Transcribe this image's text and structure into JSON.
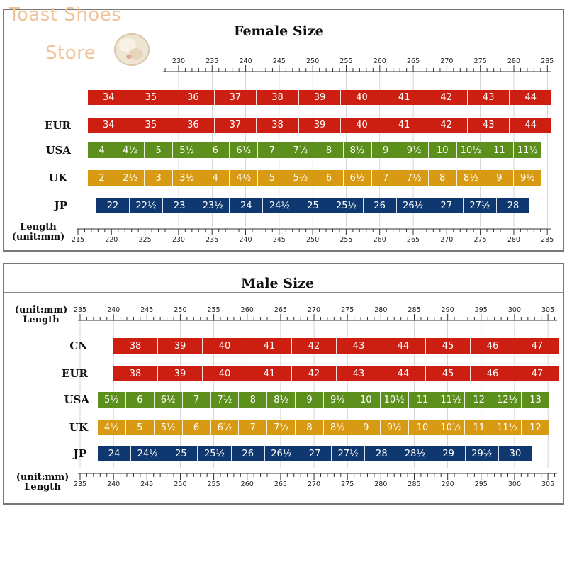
{
  "watermark": {
    "line1": "Toast Shoes",
    "line2": "Store",
    "logo_icon": "toast-bread-icon"
  },
  "colors": {
    "red": "#cc1f12",
    "green": "#5c8f1c",
    "orange": "#d89a12",
    "navy": "#0f3870"
  },
  "female": {
    "title": "Female Size",
    "length_label": "Length",
    "unit_label": "(unit:mm)",
    "top_ruler_ticks": [
      "230",
      "235",
      "240",
      "245",
      "250",
      "255",
      "260",
      "265",
      "270",
      "275",
      "280",
      "285"
    ],
    "bottom_ruler_ticks": [
      "215",
      "220",
      "225",
      "230",
      "235",
      "240",
      "245",
      "250",
      "255",
      "260",
      "265",
      "270",
      "275",
      "280",
      "285"
    ],
    "rows": [
      {
        "label": "",
        "cells": [
          "34",
          "35",
          "36",
          "37",
          "38",
          "39",
          "40",
          "41",
          "42",
          "43",
          "44"
        ]
      },
      {
        "label": "EUR",
        "cells": [
          "34",
          "35",
          "36",
          "37",
          "38",
          "39",
          "40",
          "41",
          "42",
          "43",
          "44"
        ]
      },
      {
        "label": "USA",
        "cells": [
          "4",
          "4½",
          "5",
          "5½",
          "6",
          "6½",
          "7",
          "7½",
          "8",
          "8½",
          "9",
          "9½",
          "10",
          "10½",
          "11",
          "11½"
        ]
      },
      {
        "label": "UK",
        "cells": [
          "2",
          "2½",
          "3",
          "3½",
          "4",
          "4½",
          "5",
          "5½",
          "6",
          "6½",
          "7",
          "7½",
          "8",
          "8½",
          "9",
          "9½"
        ]
      },
      {
        "label": "JP",
        "cells": [
          "22",
          "22½",
          "23",
          "23½",
          "24",
          "24½",
          "25",
          "25½",
          "26",
          "26½",
          "27",
          "27½",
          "28"
        ]
      }
    ]
  },
  "male": {
    "title": "Male Size",
    "length_label": "Length",
    "unit_label": "(unit:mm)",
    "top_ruler_ticks": [
      "235",
      "240",
      "245",
      "250",
      "255",
      "260",
      "265",
      "270",
      "275",
      "280",
      "285",
      "290",
      "295",
      "300",
      "305"
    ],
    "bottom_ruler_ticks": [
      "235",
      "240",
      "245",
      "250",
      "255",
      "260",
      "265",
      "270",
      "275",
      "280",
      "285",
      "290",
      "295",
      "300",
      "305"
    ],
    "rows": [
      {
        "label": "CN",
        "cells": [
          "38",
          "39",
          "40",
          "41",
          "42",
          "43",
          "44",
          "45",
          "46",
          "47"
        ]
      },
      {
        "label": "EUR",
        "cells": [
          "38",
          "39",
          "40",
          "41",
          "42",
          "43",
          "44",
          "45",
          "46",
          "47"
        ]
      },
      {
        "label": "USA",
        "cells": [
          "5½",
          "6",
          "6½",
          "7",
          "7½",
          "8",
          "8½",
          "9",
          "9½",
          "10",
          "10½",
          "11",
          "11½",
          "12",
          "12½",
          "13"
        ]
      },
      {
        "label": "UK",
        "cells": [
          "4½",
          "5",
          "5½",
          "6",
          "6½",
          "7",
          "7½",
          "8",
          "8½",
          "9",
          "9½",
          "10",
          "10½",
          "11",
          "11½",
          "12"
        ]
      },
      {
        "label": "JP",
        "cells": [
          "24",
          "24½",
          "25",
          "25½",
          "26",
          "26½",
          "27",
          "27½",
          "28",
          "28½",
          "29",
          "29½",
          "30"
        ]
      }
    ]
  }
}
